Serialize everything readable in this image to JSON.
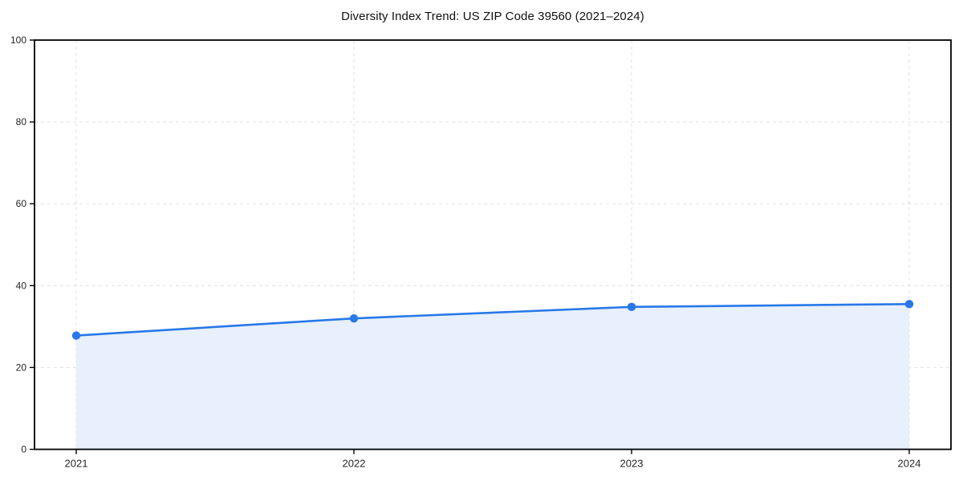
{
  "title": "Diversity Index Trend: US ZIP Code 39560 (2021–2024)",
  "chart_data": {
    "type": "area",
    "title": "Diversity Index Trend: US ZIP Code 39560 (2021–2024)",
    "categories": [
      "2021",
      "2022",
      "2023",
      "2024"
    ],
    "series": [
      {
        "name": "Diversity Index",
        "values": [
          27.8,
          32.0,
          34.8,
          35.5
        ]
      }
    ],
    "xlabel": "",
    "ylabel": "",
    "ylim": [
      0,
      100
    ],
    "yticks": [
      0,
      20,
      40,
      60,
      80,
      100
    ],
    "grid": "both-dashed",
    "legend": "none",
    "colors": {
      "line": "#2878e8",
      "marker": "#2878e8",
      "area_fill": "#e7f0fc",
      "grid": "#e0e0e0",
      "axis": "#000000",
      "tick_label": "#262626",
      "background": "#ffffff"
    }
  }
}
